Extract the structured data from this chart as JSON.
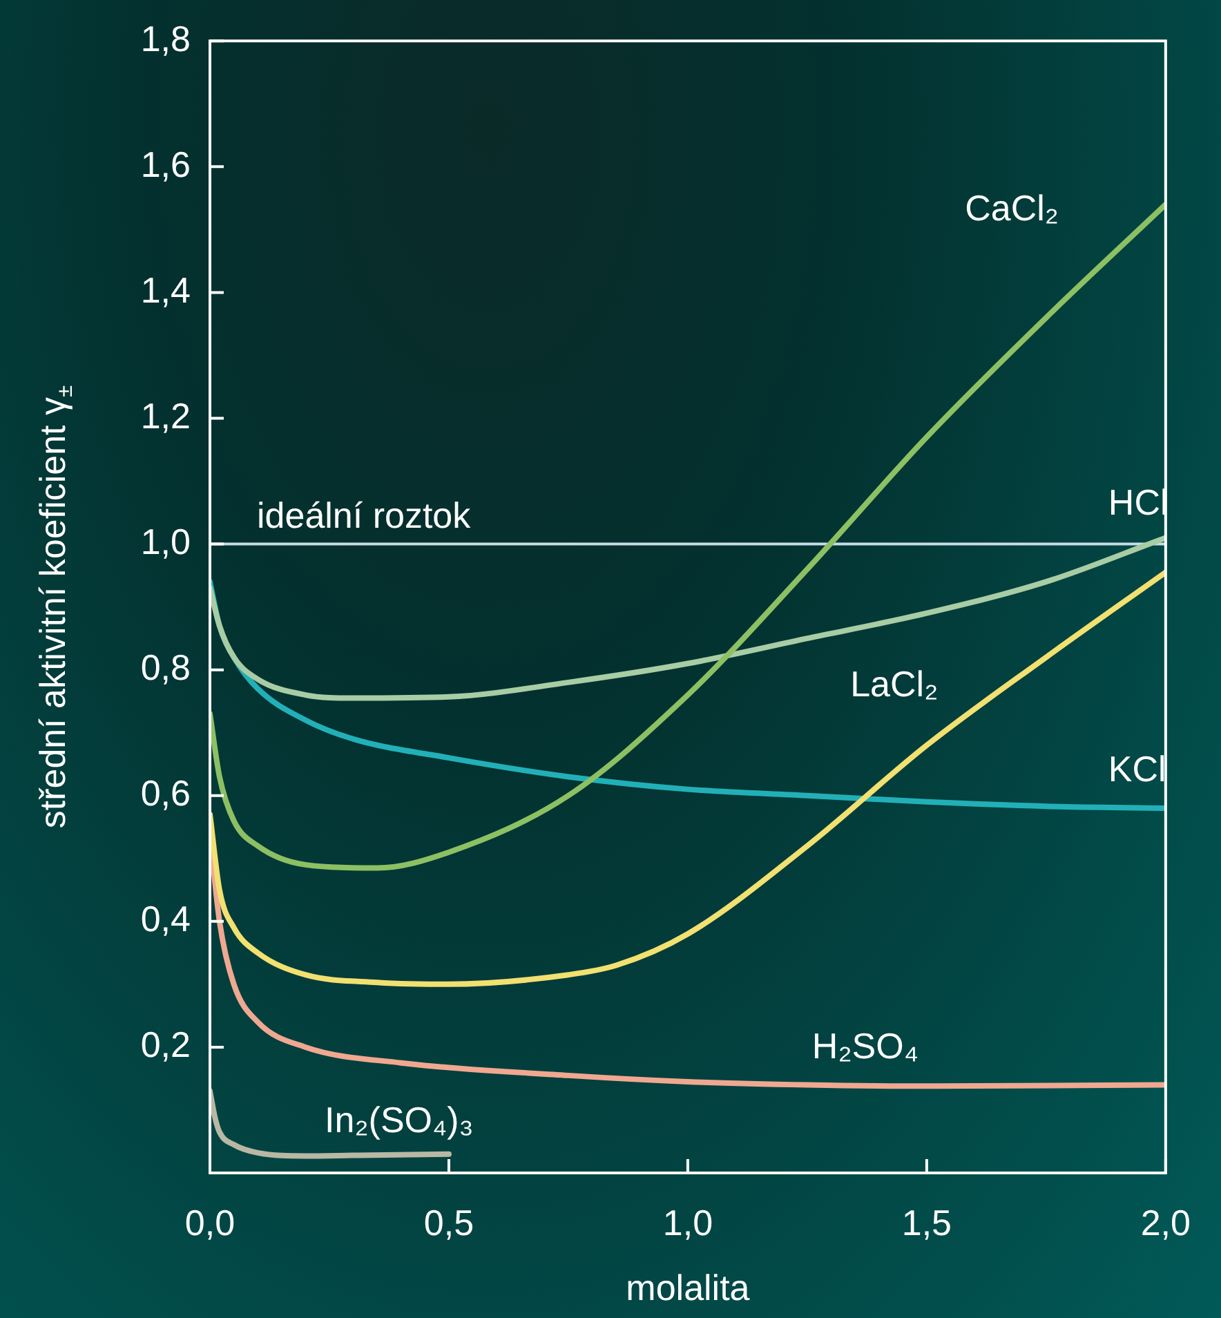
{
  "chart_data": {
    "type": "line",
    "xlabel": "molalita",
    "ylabel": "střední aktivitní koeficient γ$_{±}$",
    "xlim": [
      0,
      2.0
    ],
    "ylim": [
      0,
      1.8
    ],
    "xticks": [
      {
        "value": 0,
        "label": "0,0"
      },
      {
        "value": 0.5,
        "label": "0,5"
      },
      {
        "value": 1.0,
        "label": "1,0"
      },
      {
        "value": 1.5,
        "label": "1,5"
      },
      {
        "value": 2.0,
        "label": "2,0"
      }
    ],
    "yticks": [
      {
        "value": 0.2,
        "label": "0,2"
      },
      {
        "value": 0.4,
        "label": "0,4"
      },
      {
        "value": 0.6,
        "label": "0,6"
      },
      {
        "value": 0.8,
        "label": "0,8"
      },
      {
        "value": 1.0,
        "label": "1,0"
      },
      {
        "value": 1.2,
        "label": "1,2"
      },
      {
        "value": 1.4,
        "label": "1,4"
      },
      {
        "value": 1.6,
        "label": "1,6"
      },
      {
        "value": 1.8,
        "label": "1,8"
      }
    ],
    "grid": false,
    "legend": false,
    "marker": "none",
    "line_style": "solid",
    "ref_lines": [
      {
        "axis": "y",
        "value": 1.0,
        "label": "ideální roztok",
        "color": "#c8dce8"
      }
    ],
    "series": [
      {
        "name": "CaCl₂",
        "color": "#8cc063",
        "x": [
          0,
          0.02,
          0.05,
          0.1,
          0.2,
          0.35,
          0.5,
          0.75,
          1.0,
          1.25,
          1.5,
          1.75,
          2.0
        ],
        "values": [
          0.73,
          0.63,
          0.56,
          0.52,
          0.49,
          0.485,
          0.51,
          0.6,
          0.76,
          0.96,
          1.17,
          1.36,
          1.54
        ]
      },
      {
        "name": "HCl",
        "color": "#a8cca4",
        "x": [
          0,
          0.02,
          0.05,
          0.1,
          0.2,
          0.3,
          0.5,
          0.75,
          1.0,
          1.25,
          1.5,
          1.75,
          2.0
        ],
        "values": [
          0.93,
          0.87,
          0.82,
          0.785,
          0.76,
          0.755,
          0.757,
          0.78,
          0.81,
          0.85,
          0.89,
          0.94,
          1.01
        ]
      },
      {
        "name": "LaCl₂",
        "color": "#f2e070",
        "x": [
          0,
          0.02,
          0.05,
          0.1,
          0.2,
          0.35,
          0.5,
          0.75,
          0.85,
          1.0,
          1.25,
          1.5,
          1.75,
          2.0
        ],
        "values": [
          0.57,
          0.45,
          0.39,
          0.35,
          0.315,
          0.303,
          0.3,
          0.315,
          0.33,
          0.38,
          0.52,
          0.68,
          0.82,
          0.955
        ]
      },
      {
        "name": "KCl",
        "color": "#22b0b8",
        "x": [
          0,
          0.02,
          0.05,
          0.1,
          0.2,
          0.3,
          0.5,
          0.75,
          1.0,
          1.25,
          1.5,
          1.75,
          2.0
        ],
        "values": [
          0.94,
          0.87,
          0.82,
          0.77,
          0.72,
          0.69,
          0.66,
          0.63,
          0.61,
          0.6,
          0.59,
          0.583,
          0.58
        ]
      },
      {
        "name": "H₂SO₄",
        "color": "#f0a890",
        "x": [
          0,
          0.02,
          0.05,
          0.1,
          0.2,
          0.4,
          0.75,
          1.0,
          1.25,
          1.5,
          2.0
        ],
        "values": [
          0.54,
          0.4,
          0.3,
          0.24,
          0.2,
          0.175,
          0.155,
          0.145,
          0.14,
          0.138,
          0.14
        ]
      },
      {
        "name": "In₂(SO₄)₃",
        "color": "#b8b8a4",
        "x": [
          0,
          0.01,
          0.02,
          0.05,
          0.1,
          0.2,
          0.3,
          0.5
        ],
        "values": [
          0.13,
          0.09,
          0.065,
          0.045,
          0.032,
          0.027,
          0.028,
          0.03
        ]
      }
    ]
  }
}
